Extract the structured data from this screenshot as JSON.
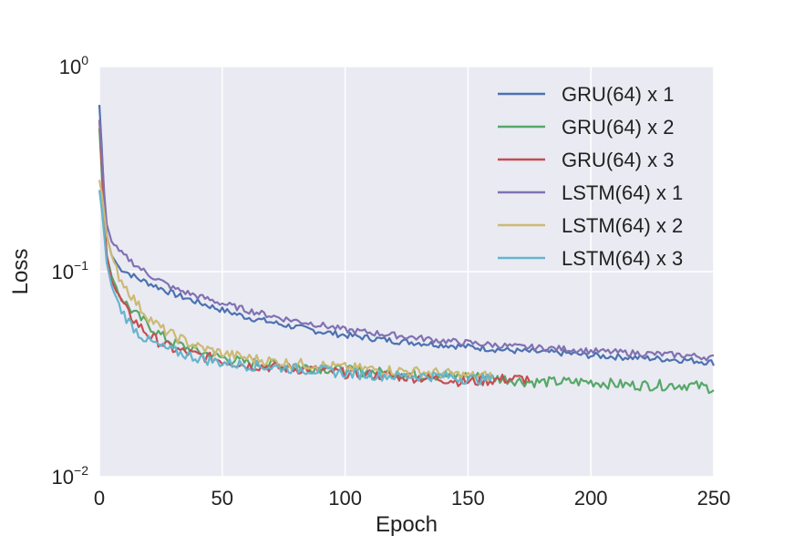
{
  "chart_data": {
    "type": "line",
    "title": "",
    "xlabel": "Epoch",
    "ylabel": "Loss",
    "xlim": [
      0,
      250
    ],
    "ylim": [
      0.01,
      1
    ],
    "yscale": "log",
    "grid": true,
    "legend_position": "top-right",
    "x_ticks": [
      {
        "value": 0,
        "label": "0"
      },
      {
        "value": 50,
        "label": "50"
      },
      {
        "value": 100,
        "label": "100"
      },
      {
        "value": 150,
        "label": "150"
      },
      {
        "value": 200,
        "label": "200"
      },
      {
        "value": 250,
        "label": "250"
      }
    ],
    "y_ticks": [
      {
        "value": 1,
        "base": "10",
        "exp": "0"
      },
      {
        "value": 0.1,
        "base": "10",
        "exp": "−1"
      },
      {
        "value": 0.01,
        "base": "10",
        "exp": "−2"
      }
    ],
    "series": [
      {
        "name": "GRU(64) x 1",
        "color": "#4c72b0",
        "x": [
          0,
          1,
          2,
          3,
          5,
          8,
          12,
          16,
          20,
          25,
          30,
          40,
          50,
          60,
          75,
          90,
          100,
          120,
          140,
          150,
          170,
          190,
          200,
          220,
          240,
          250
        ],
        "values": [
          0.65,
          0.4,
          0.22,
          0.15,
          0.12,
          0.105,
          0.098,
          0.092,
          0.088,
          0.083,
          0.078,
          0.071,
          0.065,
          0.06,
          0.055,
          0.051,
          0.049,
          0.046,
          0.044,
          0.043,
          0.041,
          0.04,
          0.039,
          0.038,
          0.037,
          0.036
        ]
      },
      {
        "name": "GRU(64) x 2",
        "color": "#55a868",
        "x": [
          0,
          1,
          2,
          3,
          5,
          8,
          12,
          16,
          20,
          25,
          30,
          40,
          50,
          60,
          75,
          90,
          100,
          120,
          140,
          150,
          165,
          175,
          180,
          190,
          200,
          215,
          230,
          240,
          250
        ],
        "values": [
          0.5,
          0.3,
          0.17,
          0.12,
          0.095,
          0.078,
          0.067,
          0.06,
          0.055,
          0.049,
          0.045,
          0.041,
          0.038,
          0.036,
          0.035,
          0.034,
          0.033,
          0.032,
          0.031,
          0.031,
          0.03,
          0.029,
          0.029,
          0.029,
          0.029,
          0.028,
          0.028,
          0.028,
          0.027
        ]
      },
      {
        "name": "GRU(64) x 3",
        "color": "#c44e52",
        "x": [
          0,
          1,
          2,
          3,
          5,
          8,
          12,
          16,
          20,
          25,
          30,
          40,
          50,
          60,
          75,
          90,
          100,
          120,
          140,
          150,
          165,
          175
        ],
        "values": [
          0.55,
          0.33,
          0.18,
          0.12,
          0.09,
          0.075,
          0.062,
          0.055,
          0.049,
          0.045,
          0.042,
          0.039,
          0.037,
          0.035,
          0.034,
          0.033,
          0.032,
          0.031,
          0.03,
          0.029,
          0.03,
          0.03
        ]
      },
      {
        "name": "LSTM(64) x 1",
        "color": "#8172b2",
        "x": [
          0,
          1,
          2,
          3,
          5,
          8,
          12,
          16,
          20,
          25,
          30,
          40,
          50,
          60,
          75,
          90,
          100,
          120,
          140,
          150,
          170,
          190,
          200,
          220,
          240,
          250
        ],
        "values": [
          0.55,
          0.38,
          0.24,
          0.17,
          0.14,
          0.125,
          0.115,
          0.105,
          0.097,
          0.09,
          0.083,
          0.076,
          0.07,
          0.065,
          0.059,
          0.055,
          0.052,
          0.049,
          0.046,
          0.045,
          0.043,
          0.042,
          0.041,
          0.04,
          0.039,
          0.038
        ]
      },
      {
        "name": "LSTM(64) x 2",
        "color": "#ccb974",
        "x": [
          0,
          1,
          2,
          3,
          5,
          8,
          12,
          16,
          20,
          25,
          30,
          40,
          50,
          60,
          75,
          90,
          100,
          120,
          140,
          150,
          160
        ],
        "values": [
          0.28,
          0.24,
          0.19,
          0.15,
          0.12,
          0.095,
          0.08,
          0.068,
          0.06,
          0.053,
          0.049,
          0.043,
          0.04,
          0.038,
          0.036,
          0.035,
          0.034,
          0.033,
          0.032,
          0.031,
          0.031
        ]
      },
      {
        "name": "LSTM(64) x 3",
        "color": "#64b5cd",
        "x": [
          0,
          1,
          2,
          3,
          5,
          8,
          12,
          16,
          20,
          25,
          30,
          40,
          50,
          60,
          75,
          90,
          100,
          120,
          140,
          150,
          160
        ],
        "values": [
          0.25,
          0.2,
          0.15,
          0.11,
          0.085,
          0.068,
          0.057,
          0.05,
          0.046,
          0.043,
          0.041,
          0.038,
          0.036,
          0.035,
          0.034,
          0.033,
          0.032,
          0.031,
          0.031,
          0.03,
          0.03
        ]
      }
    ]
  }
}
